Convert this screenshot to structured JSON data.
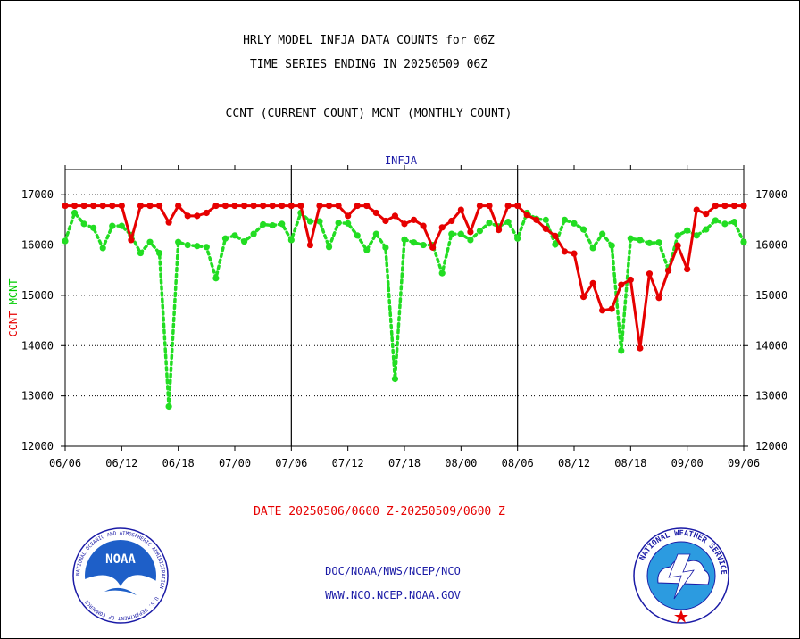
{
  "header": {
    "line1": "HRLY MODEL INFJA DATA COUNTS for 06Z",
    "line2": "TIME SERIES ENDING IN 20250509 06Z",
    "line3": "CCNT (CURRENT COUNT) MCNT (MONTHLY COUNT)"
  },
  "footer": {
    "date_range": "DATE 20250506/0600 Z-20250509/0600 Z",
    "org": "DOC/NOAA/NWS/NCEP/NCO",
    "url": "WWW.NCO.NCEP.NOAA.GOV"
  },
  "logos": {
    "noaa_text": "NOAA",
    "noaa_seal_text": "NATIONAL OCEANIC AND ATMOSPHERIC ADMINISTRATION · U.S. DEPARTMENT OF COMMERCE",
    "nws_seal_text": "NATIONAL WEATHER SERVICE"
  },
  "chart_data": {
    "type": "line",
    "title": "INFJA",
    "ylabel_parts": [
      {
        "text": "CCNT",
        "color": "#e60000"
      },
      {
        "text": "MCNT",
        "color": "#00cc00"
      }
    ],
    "ylim": [
      12000,
      17500
    ],
    "yticks": [
      12000,
      13000,
      14000,
      15000,
      16000,
      17000
    ],
    "ytick_labels": [
      "12000",
      "13000",
      "14000",
      "15000",
      "16000",
      "17000"
    ],
    "x_tick_labels": [
      "06/06",
      "06/12",
      "06/18",
      "07/00",
      "07/06",
      "07/12",
      "07/18",
      "08/00",
      "08/06",
      "08/12",
      "08/18",
      "09/00",
      "09/06"
    ],
    "x_hour_range": [
      0,
      72
    ],
    "x_tick_step_hours": 6,
    "day_dividers_hours": [
      24,
      48
    ],
    "grid": "horizontal-dotted",
    "series": [
      {
        "name": "CCNT",
        "color": "#e60000",
        "style": "solid",
        "x_hours": [
          0,
          1,
          2,
          3,
          4,
          5,
          6,
          7,
          8,
          9,
          10,
          11,
          12,
          13,
          14,
          15,
          16,
          17,
          18,
          19,
          20,
          21,
          22,
          23,
          24,
          25,
          26,
          27,
          28,
          29,
          30,
          31,
          32,
          33,
          34,
          35,
          36,
          37,
          38,
          39,
          40,
          41,
          42,
          43,
          44,
          45,
          46,
          47,
          48,
          49,
          50,
          51,
          52,
          53,
          54,
          55,
          56,
          57,
          58,
          59,
          60,
          61,
          62,
          63,
          64,
          65,
          66,
          67,
          68,
          69,
          70,
          71,
          72
        ],
        "values": [
          16780,
          16780,
          16780,
          16780,
          16780,
          16780,
          16780,
          16100,
          16780,
          16780,
          16780,
          16450,
          16780,
          16580,
          16580,
          16640,
          16780,
          16780,
          16780,
          16780,
          16780,
          16780,
          16780,
          16780,
          16780,
          16780,
          16000,
          16780,
          16780,
          16780,
          16580,
          16780,
          16780,
          16640,
          16480,
          16580,
          16420,
          16500,
          16380,
          15950,
          16350,
          16480,
          16700,
          16260,
          16780,
          16780,
          16300,
          16780,
          16780,
          16600,
          16500,
          16320,
          16180,
          15870,
          15830,
          14970,
          15240,
          14700,
          14730,
          15210,
          15310,
          13950,
          15430,
          14950,
          15490,
          15990,
          15520,
          16700,
          16620,
          16780,
          16780,
          16780,
          16780
        ]
      },
      {
        "name": "MCNT",
        "color": "#22dd22",
        "style": "dotted",
        "x_hours": [
          0,
          1,
          2,
          3,
          4,
          5,
          6,
          7,
          8,
          9,
          10,
          11,
          12,
          13,
          14,
          15,
          16,
          17,
          18,
          19,
          20,
          21,
          22,
          23,
          24,
          25,
          26,
          27,
          28,
          29,
          30,
          31,
          32,
          33,
          34,
          35,
          36,
          37,
          38,
          39,
          40,
          41,
          42,
          43,
          44,
          45,
          46,
          47,
          48,
          49,
          50,
          51,
          52,
          53,
          54,
          55,
          56,
          57,
          58,
          59,
          60,
          61,
          62,
          63,
          64,
          65,
          66,
          67,
          68,
          69,
          70,
          71,
          72
        ],
        "values": [
          16080,
          16640,
          16420,
          16340,
          15940,
          16380,
          16380,
          16200,
          15840,
          16060,
          15840,
          12790,
          16060,
          16000,
          15980,
          15960,
          15340,
          16130,
          16190,
          16070,
          16220,
          16410,
          16390,
          16420,
          16100,
          16640,
          16470,
          16470,
          15960,
          16440,
          16430,
          16190,
          15900,
          16220,
          15950,
          13340,
          16110,
          16050,
          16000,
          16000,
          15440,
          16220,
          16220,
          16100,
          16280,
          16440,
          16370,
          16460,
          16130,
          16640,
          16520,
          16500,
          16010,
          16500,
          16430,
          16310,
          15940,
          16220,
          15990,
          13900,
          16130,
          16100,
          16040,
          16050,
          15510,
          16190,
          16290,
          16190,
          16310,
          16490,
          16420,
          16460,
          16060
        ]
      }
    ]
  }
}
